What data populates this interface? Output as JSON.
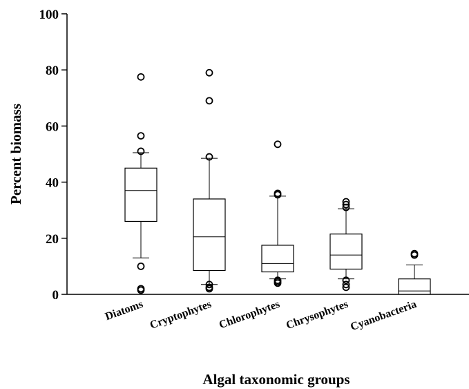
{
  "chart_data": {
    "type": "box",
    "title": "",
    "xlabel": "Algal taxonomic groups",
    "ylabel": "Percent biomass",
    "ylim": [
      0,
      100
    ],
    "yticks": [
      0,
      20,
      40,
      60,
      80,
      100
    ],
    "grid": false,
    "categories": [
      "Diatoms",
      "Cryptophytes",
      "Chlorophytes",
      "Chrysophytes",
      "Cyanobacteria"
    ],
    "boxes": [
      {
        "category": "Diatoms",
        "whisker_low": 13,
        "q1": 26,
        "median": 37,
        "q3": 45,
        "whisker_high": 50.5,
        "outliers": [
          77.5,
          56.5,
          51,
          10,
          2,
          1.5
        ]
      },
      {
        "category": "Cryptophytes",
        "whisker_low": 3.5,
        "q1": 8.5,
        "median": 20.5,
        "q3": 34,
        "whisker_high": 48.5,
        "outliers": [
          79,
          69,
          49,
          3.5,
          2.5,
          2
        ]
      },
      {
        "category": "Chlorophytes",
        "whisker_low": 5.5,
        "q1": 8,
        "median": 11,
        "q3": 17.5,
        "whisker_high": 35,
        "outliers": [
          53.5,
          36,
          35.5,
          5,
          4.5,
          4
        ]
      },
      {
        "category": "Chrysophytes",
        "whisker_low": 5.5,
        "q1": 9,
        "median": 14,
        "q3": 21.5,
        "whisker_high": 30.5,
        "outliers": [
          33,
          32,
          31,
          5,
          3.5,
          2.5
        ]
      },
      {
        "category": "Cyanobacteria",
        "whisker_low": 0,
        "q1": 0,
        "median": 1.2,
        "q3": 5.5,
        "whisker_high": 10.5,
        "outliers": [
          14.5,
          14
        ]
      }
    ]
  }
}
